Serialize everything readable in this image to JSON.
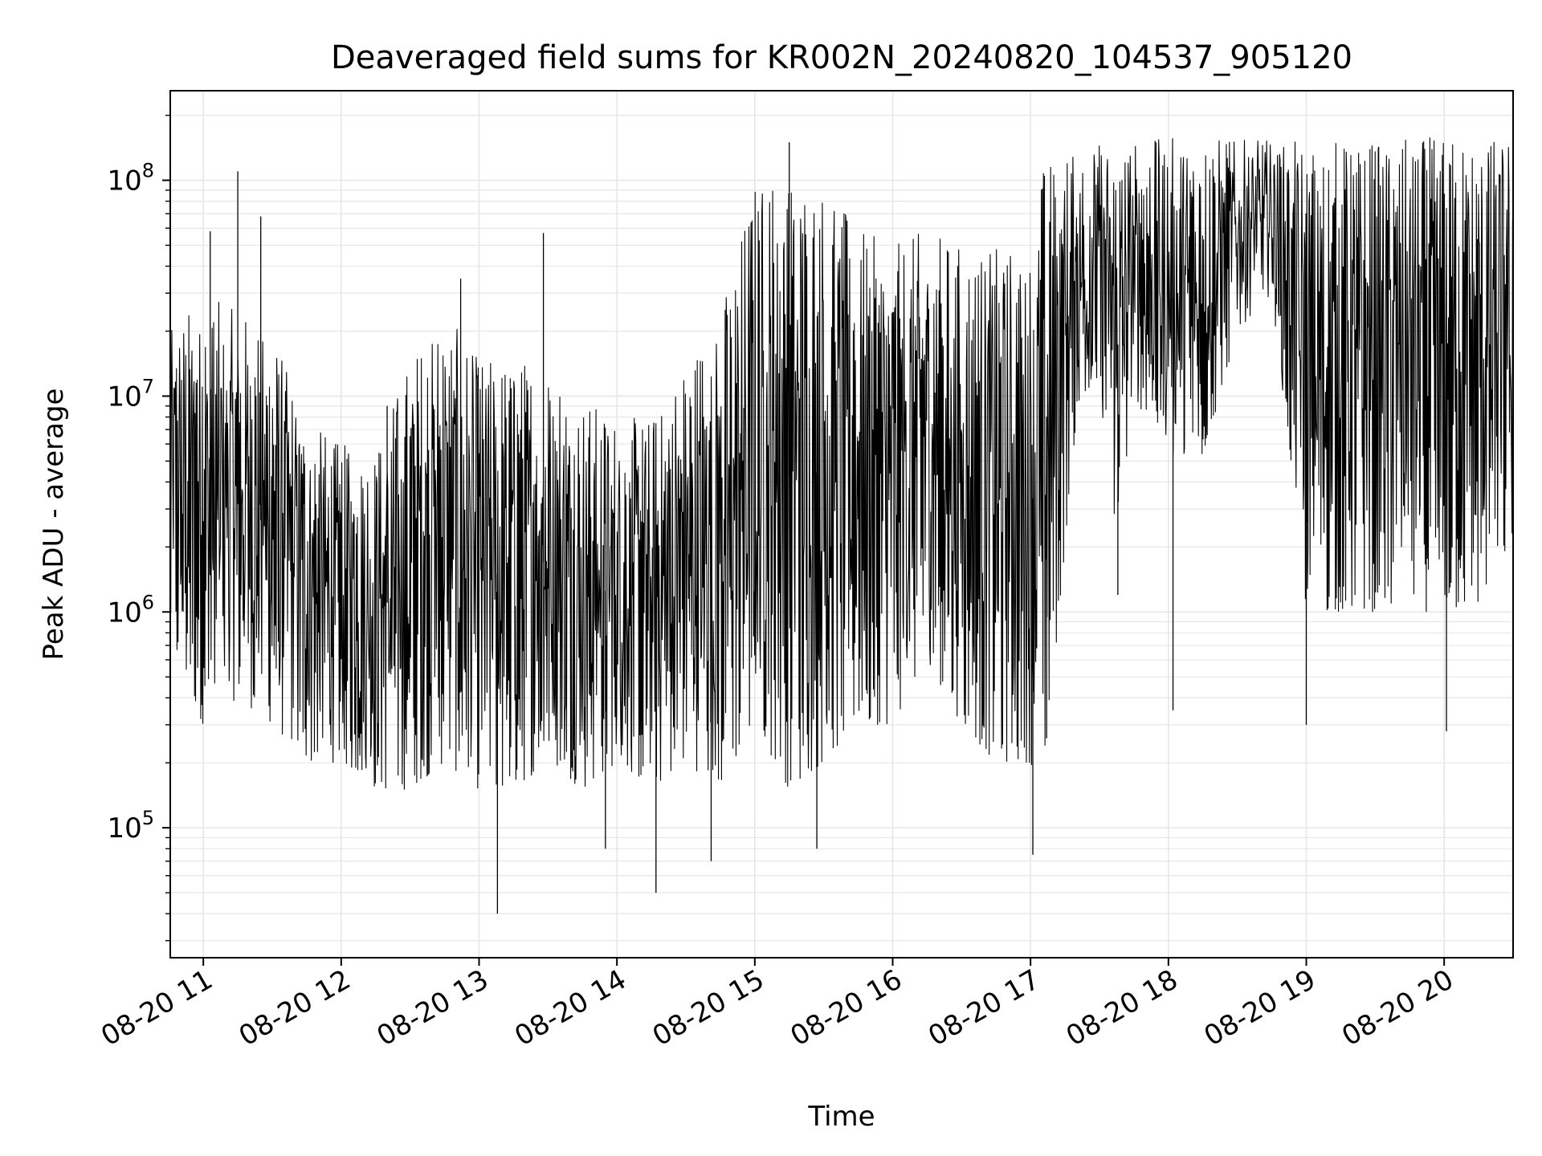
{
  "chart_data": {
    "type": "line",
    "title": "Deaveraged field sums for KR002N_20240820_104537_905120",
    "xlabel": "Time",
    "ylabel": "Peak ADU - average",
    "yscale": "log",
    "xlim": [
      "2024-08-20 10:45:37",
      "2024-08-20 20:30:00"
    ],
    "ylim": [
      25000,
      260000000
    ],
    "grid": true,
    "line_color": "#000000",
    "grid_color": "#e6e6e6",
    "x_ticks": [
      {
        "t": "2024-08-20 11:00",
        "label": "08-20 11"
      },
      {
        "t": "2024-08-20 12:00",
        "label": "08-20 12"
      },
      {
        "t": "2024-08-20 13:00",
        "label": "08-20 13"
      },
      {
        "t": "2024-08-20 14:00",
        "label": "08-20 14"
      },
      {
        "t": "2024-08-20 15:00",
        "label": "08-20 15"
      },
      {
        "t": "2024-08-20 16:00",
        "label": "08-20 16"
      },
      {
        "t": "2024-08-20 17:00",
        "label": "08-20 17"
      },
      {
        "t": "2024-08-20 18:00",
        "label": "08-20 18"
      },
      {
        "t": "2024-08-20 19:00",
        "label": "08-20 19"
      },
      {
        "t": "2024-08-20 20:00",
        "label": "08-20 20"
      }
    ],
    "y_ticks": [
      {
        "value": 100000,
        "base": "10",
        "exp": "5"
      },
      {
        "value": 1000000,
        "base": "10",
        "exp": "6"
      },
      {
        "value": 10000000,
        "base": "10",
        "exp": "7"
      },
      {
        "value": 100000000,
        "base": "10",
        "exp": "8"
      }
    ],
    "envelope": {
      "time": [
        "10:45",
        "11:00",
        "11:15",
        "11:30",
        "11:45",
        "12:00",
        "12:15",
        "12:30",
        "12:45",
        "13:00",
        "13:15",
        "13:30",
        "13:45",
        "14:00",
        "14:15",
        "14:30",
        "14:45",
        "15:00",
        "15:15",
        "15:30",
        "15:45",
        "16:00",
        "16:15",
        "16:30",
        "16:45",
        "17:00",
        "17:05",
        "17:10",
        "17:20",
        "17:30",
        "17:38",
        "17:45",
        "18:00",
        "18:15",
        "18:30",
        "18:45",
        "19:00",
        "19:15",
        "19:30",
        "19:45",
        "20:00",
        "20:15",
        "20:30"
      ],
      "lower": [
        600000,
        300000,
        400000,
        300000,
        200000,
        200000,
        150000,
        150000,
        200000,
        150000,
        150000,
        200000,
        150000,
        200000,
        150000,
        200000,
        150000,
        300000,
        150000,
        200000,
        300000,
        300000,
        600000,
        300000,
        200000,
        200000,
        150000,
        500000,
        8000000,
        10000000,
        2000000,
        10000000,
        5000000,
        5000000,
        20000000,
        30000000,
        1000000,
        1000000,
        1000000,
        1000000,
        1000000,
        1000000,
        2000000
      ],
      "upper": [
        20000000,
        30000000,
        25000000,
        20000000,
        8000000,
        6000000,
        6000000,
        15000000,
        25000000,
        15000000,
        15000000,
        15000000,
        10000000,
        8000000,
        8000000,
        15000000,
        25000000,
        100000000,
        120000000,
        100000000,
        60000000,
        50000000,
        60000000,
        50000000,
        50000000,
        50000000,
        120000000,
        130000000,
        140000000,
        150000000,
        150000000,
        150000000,
        160000000,
        160000000,
        155000000,
        155000000,
        150000000,
        155000000,
        155000000,
        160000000,
        160000000,
        160000000,
        160000000
      ]
    },
    "extremes": [
      {
        "t": "11:03",
        "value": 58000000
      },
      {
        "t": "11:15",
        "value": 110000000
      },
      {
        "t": "11:25",
        "value": 68000000
      },
      {
        "t": "12:20",
        "value": 9000000
      },
      {
        "t": "12:52",
        "value": 35000000
      },
      {
        "t": "13:08",
        "value": 40000
      },
      {
        "t": "13:28",
        "value": 57000000
      },
      {
        "t": "13:55",
        "value": 80000
      },
      {
        "t": "14:17",
        "value": 50000
      },
      {
        "t": "14:41",
        "value": 70000
      },
      {
        "t": "15:15",
        "value": 150000000
      },
      {
        "t": "15:27",
        "value": 80000
      },
      {
        "t": "17:01",
        "value": 75000
      },
      {
        "t": "17:07",
        "value": 260000
      },
      {
        "t": "17:38",
        "value": 1200000
      },
      {
        "t": "18:02",
        "value": 350000
      },
      {
        "t": "19:00",
        "value": 300000
      },
      {
        "t": "20:01",
        "value": 280000
      }
    ],
    "extremes_note": ""
  }
}
